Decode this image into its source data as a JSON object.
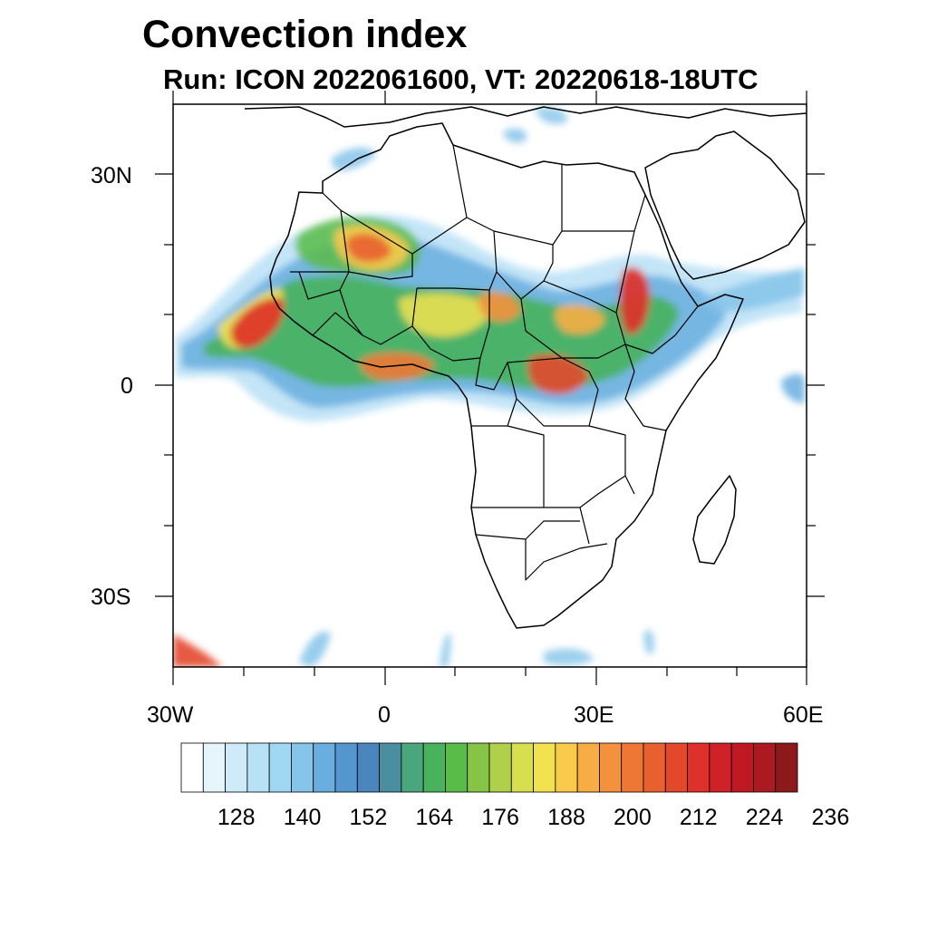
{
  "title": "Convection index",
  "subtitle": "Run: ICON 2022061600,  VT: 20220618-18UTC",
  "map": {
    "lon_range": [
      -30,
      60
    ],
    "lat_range": [
      -40,
      40
    ],
    "lon_ticks": [
      {
        "value": -30,
        "label": "30W"
      },
      {
        "value": 0,
        "label": "0"
      },
      {
        "value": 30,
        "label": "30E"
      },
      {
        "value": 60,
        "label": "60E"
      }
    ],
    "lat_ticks": [
      {
        "value": 30,
        "label": "30N"
      },
      {
        "value": 0,
        "label": "0"
      },
      {
        "value": -30,
        "label": "30S"
      }
    ]
  },
  "colorbar": {
    "colors": [
      "#ffffff",
      "#e6f4fb",
      "#cfeaf8",
      "#b8e1f6",
      "#a0d8f3",
      "#86c4ea",
      "#6aaee0",
      "#5497cf",
      "#4a86bd",
      "#4a8fa0",
      "#4aa67c",
      "#48b25c",
      "#5abc48",
      "#86c447",
      "#b0cf4a",
      "#d8df4f",
      "#f2e250",
      "#f8cb4b",
      "#f7ad44",
      "#f4913c",
      "#ef7735",
      "#e9602f",
      "#e3482b",
      "#dd3129",
      "#cf2127",
      "#bf1a24",
      "#aa1a20",
      "#8c1a1b"
    ],
    "labels": [
      "128",
      "140",
      "152",
      "164",
      "176",
      "188",
      "200",
      "212",
      "224",
      "236"
    ]
  }
}
